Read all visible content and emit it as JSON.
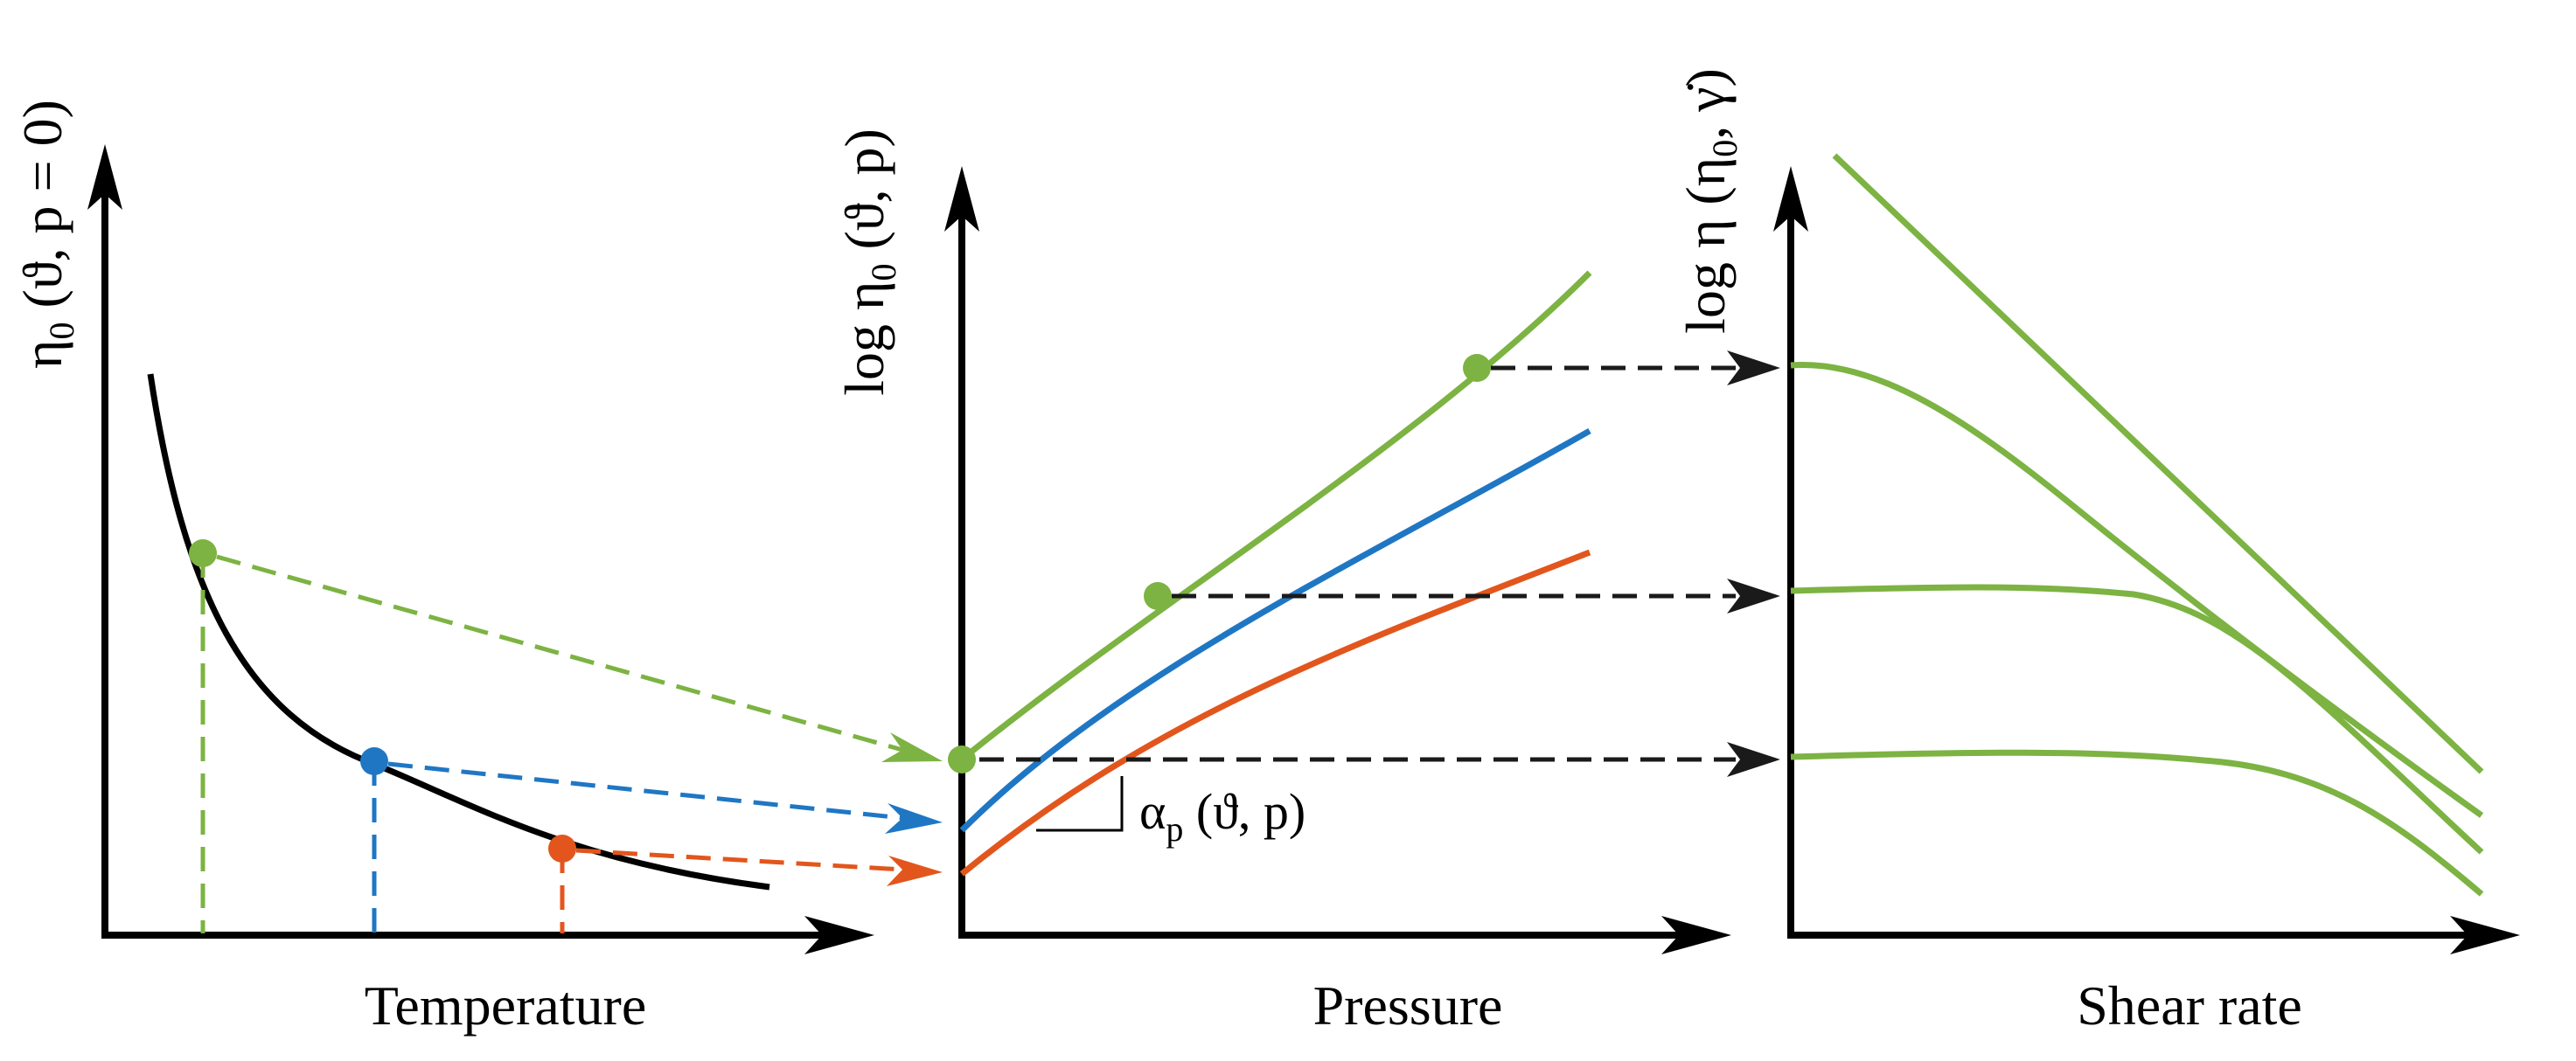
{
  "colors": {
    "axis": "#000000",
    "green": "#7cb342",
    "blue": "#1f77c4",
    "orange": "#e2561d",
    "dash_black": "#1a1a1a"
  },
  "panel1": {
    "x_label": "Temperature",
    "y_label_main": "η",
    "y_label_sub": "0",
    "y_label_args": " (ϑ, p = 0)"
  },
  "panel2": {
    "x_label": "Pressure",
    "y_label_main": "log η",
    "y_label_sub": "0",
    "y_label_args": " (ϑ, p)",
    "annotation_main": "α",
    "annotation_sub": "p",
    "annotation_args": " (ϑ, p)"
  },
  "panel3": {
    "x_label": "Shear rate",
    "y_label_main": "log η (η",
    "y_label_sub": "0",
    "y_label_args": ", γ̇)"
  }
}
